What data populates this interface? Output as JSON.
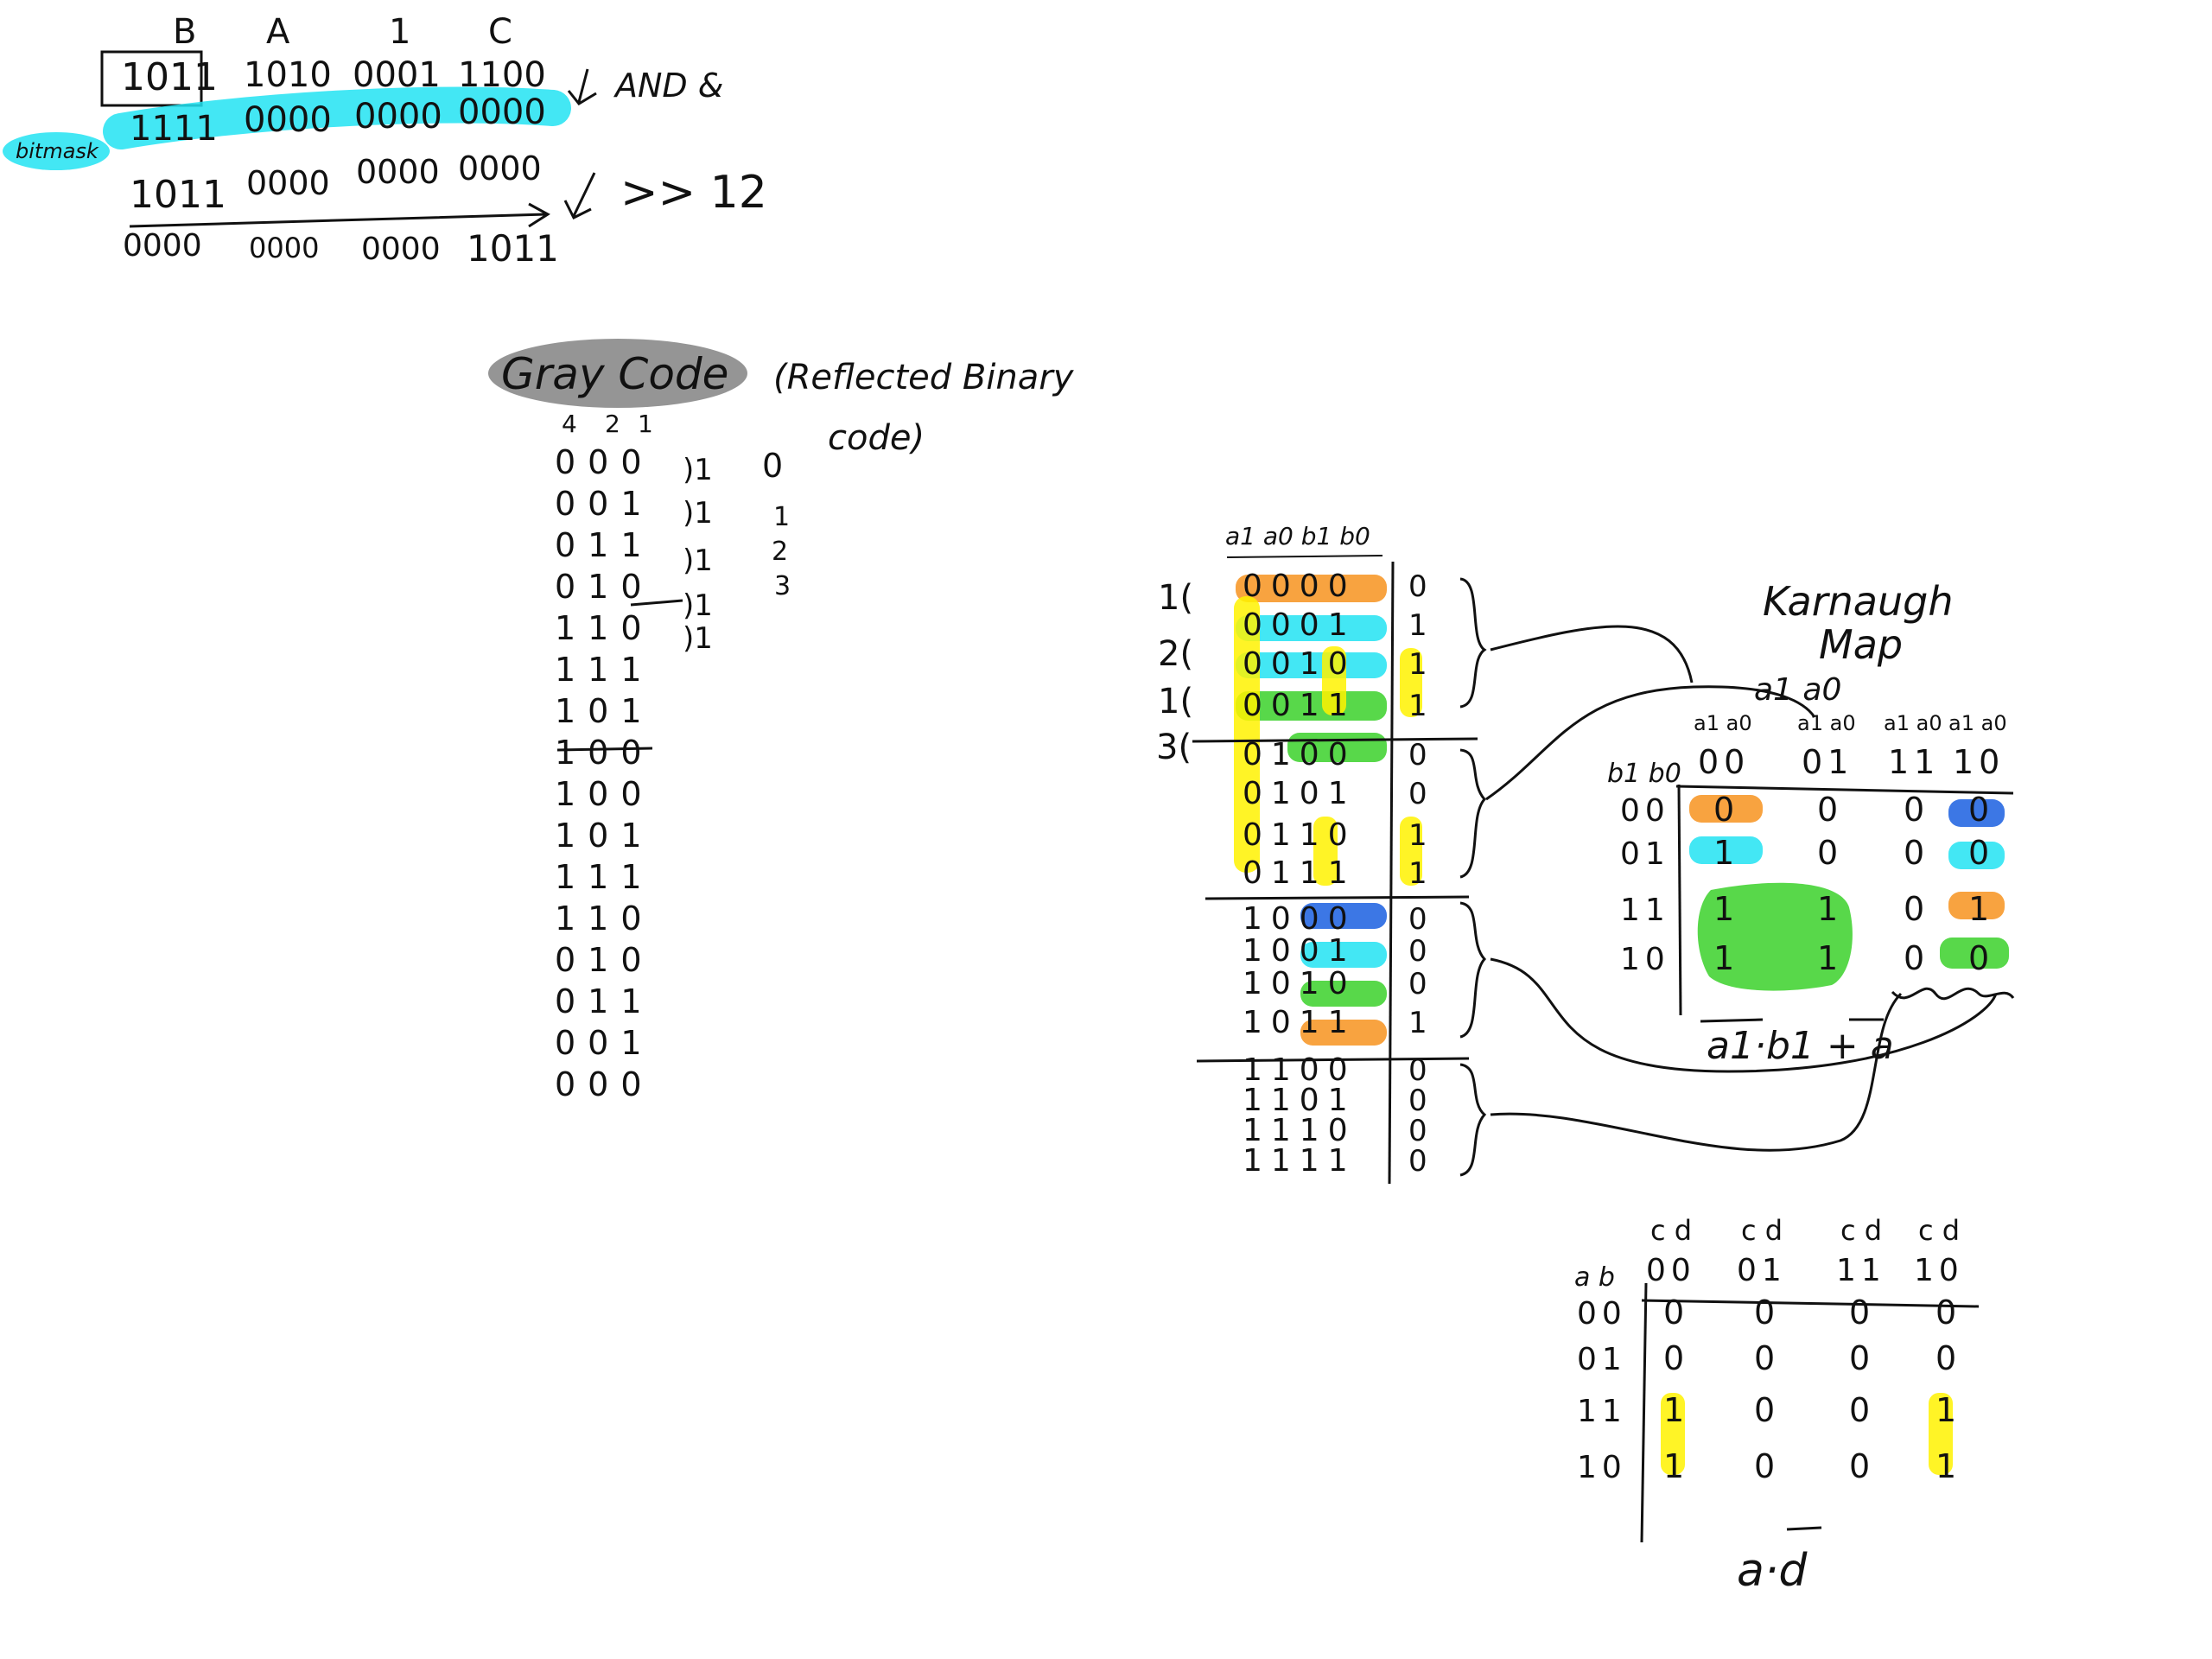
{
  "bitmask_section": {
    "headers": [
      "B",
      "A",
      "1",
      "C"
    ],
    "value_groups": [
      "1011",
      "1010",
      "0001",
      "1100"
    ],
    "mask_groups": [
      "1111",
      "0000",
      "0000",
      "0000"
    ],
    "mask_label": "bitmask",
    "and_label": "AND &",
    "result_groups": [
      "1011",
      "0000",
      "0000",
      "0000"
    ],
    "shift_label": ">> 12",
    "shifted_groups": [
      "0000",
      "0000",
      "0000",
      "1011"
    ]
  },
  "gray_code": {
    "title": "Gray Code",
    "subtitle_line1": "(Reflected Binary",
    "subtitle_line2": "code)",
    "column_weights": [
      "4",
      "2",
      "1"
    ],
    "rows": [
      "000",
      "001",
      "011",
      "010",
      "110",
      "111",
      "101",
      "100",
      "100",
      "101",
      "111",
      "110",
      "010",
      "011",
      "001",
      "000"
    ],
    "side_brackets": [
      ")1",
      ")1",
      ")1",
      ")1",
      ")1"
    ],
    "side_values": [
      "0",
      "1",
      "2",
      "3"
    ]
  },
  "truth_table": {
    "header": "a1 a0 b1 b0",
    "left_labels": [
      "1(",
      "2(",
      "1(",
      "3("
    ],
    "inputs": [
      "0000",
      "0001",
      "0010",
      "0011",
      "0100",
      "0101",
      "0110",
      "0111",
      "1000",
      "1001",
      "1010",
      "1011",
      "1100",
      "1101",
      "1110",
      "1111"
    ],
    "outputs": [
      "0",
      "1",
      "1",
      "1",
      "0",
      "0",
      "1",
      "1",
      "0",
      "0",
      "0",
      "1",
      "0",
      "0",
      "0",
      "0"
    ]
  },
  "karnaugh_map": {
    "title_line1": "Karnaugh",
    "title_line2": "Map",
    "col_var": "a1 a0",
    "row_var": "b1 b0",
    "col_labels": [
      "00",
      "01",
      "11",
      "10"
    ],
    "col_sublabels": [
      "a1 a0",
      "a1 a0",
      "a1 a0",
      "a1 a0"
    ],
    "row_labels": [
      "00",
      "01",
      "11",
      "10"
    ],
    "cells": [
      [
        "0",
        "0",
        "0",
        "0"
      ],
      [
        "1",
        "0",
        "0",
        "0"
      ],
      [
        "1",
        "1",
        "0",
        "1"
      ],
      [
        "1",
        "1",
        "0",
        "0"
      ]
    ],
    "expression": "a1·b1 + a"
  },
  "kmap2": {
    "col_var": "c d",
    "row_var": "a b",
    "col_labels": [
      "00",
      "01",
      "11",
      "10"
    ],
    "row_labels": [
      "00",
      "01",
      "11",
      "10"
    ],
    "cells": [
      [
        "0",
        "0",
        "0",
        "0"
      ],
      [
        "0",
        "0",
        "0",
        "0"
      ],
      [
        "1",
        "0",
        "0",
        "1"
      ],
      [
        "1",
        "0",
        "0",
        "1"
      ]
    ],
    "expression": "a·d"
  },
  "colors": {
    "cyan": "#22e3f2",
    "orange": "#f7931e",
    "green": "#3bd12a",
    "yellow": "#fff200",
    "blue": "#1a5fe0",
    "gray": "#8a8a8a",
    "ink": "#111111"
  }
}
